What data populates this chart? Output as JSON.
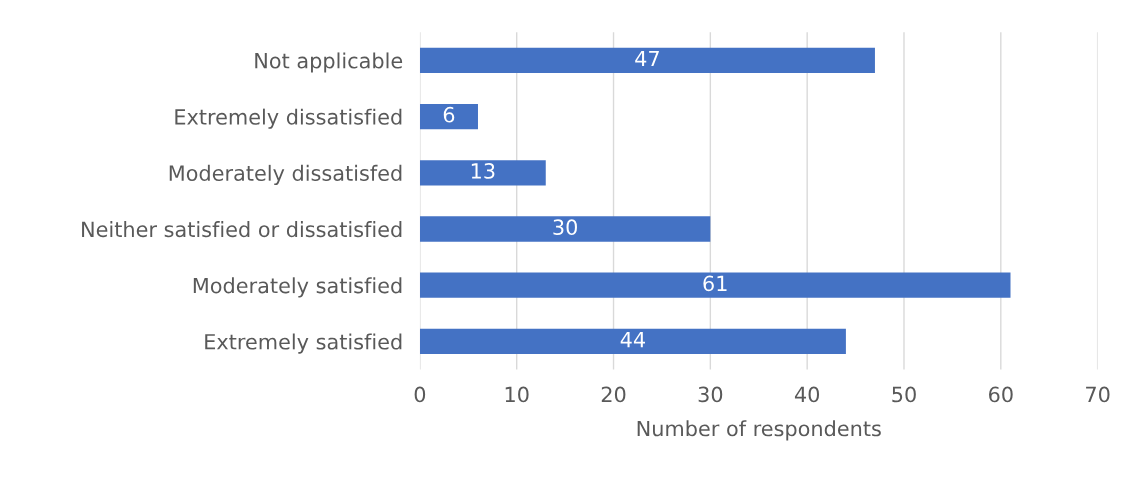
{
  "chart_data": {
    "type": "bar",
    "orientation": "horizontal",
    "xlabel": "Number of respondents",
    "categories": [
      "Not applicable",
      "Extremely dissatisfied",
      "Moderately dissatisfed",
      "Neither satisfied or dissatisfied",
      "Moderately satisfied",
      "Extremely satisfied"
    ],
    "values": [
      47,
      6,
      13,
      30,
      61,
      44
    ],
    "color": "#4472c4",
    "xlim": [
      0,
      70
    ],
    "xticks": [
      0,
      10,
      20,
      30,
      40,
      50,
      60,
      70
    ],
    "grid": "x",
    "data_labels": true
  }
}
